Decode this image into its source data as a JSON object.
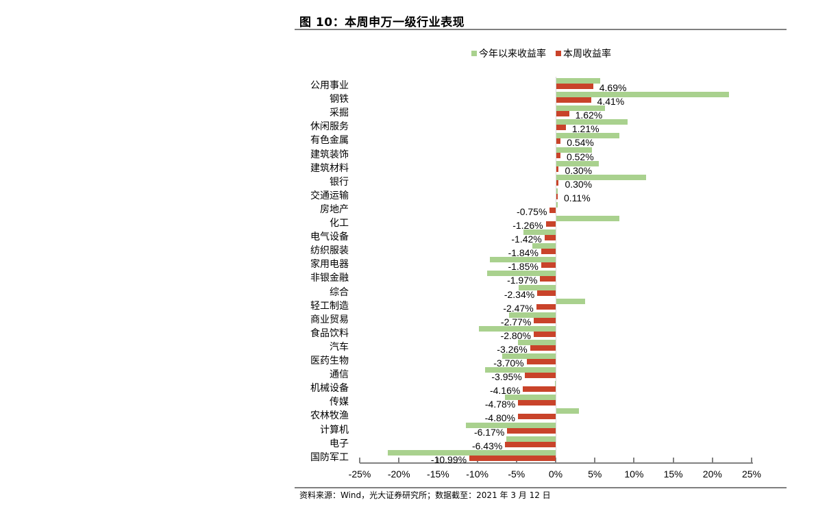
{
  "header": {
    "title": "图 10：本周申万一级行业表现"
  },
  "footer": {
    "source": "资料来源：Wind，光大证券研究所；数据截至：2021 年 3 月 12 日"
  },
  "colors": {
    "ytd": "#a9d18e",
    "week": "#c9432a",
    "axis": "#808080"
  },
  "legend": [
    {
      "label": "今年以来收益率",
      "color": "#a9d18e"
    },
    {
      "label": "本周收益率",
      "color": "#c9432a"
    }
  ],
  "chart_data": {
    "type": "bar",
    "orientation": "horizontal",
    "title": "图 10：本周申万一级行业表现",
    "xlabel": "",
    "ylabel": "",
    "xlim": [
      -25,
      25
    ],
    "x_ticks": [
      "-25%",
      "-20%",
      "-15%",
      "-10%",
      "-5%",
      "0%",
      "5%",
      "10%",
      "15%",
      "20%",
      "25%"
    ],
    "legend_position": "top",
    "grid": false,
    "categories": [
      "公用事业",
      "钢铁",
      "采掘",
      "休闲服务",
      "有色金属",
      "建筑装饰",
      "建筑材料",
      "银行",
      "交通运输",
      "房地产",
      "化工",
      "电气设备",
      "纺织服装",
      "家用电器",
      "非银金融",
      "综合",
      "轻工制造",
      "商业贸易",
      "食品饮料",
      "汽车",
      "医药生物",
      "通信",
      "机械设备",
      "传媒",
      "农林牧渔",
      "计算机",
      "电子",
      "国防军工"
    ],
    "series": [
      {
        "name": "今年以来收益率",
        "color": "#a9d18e",
        "values": [
          5.6,
          22.0,
          6.2,
          9.1,
          8.0,
          4.5,
          5.4,
          11.4,
          0.1,
          0.1,
          8.0,
          -4.1,
          -3.0,
          -8.4,
          -8.7,
          -4.7,
          3.7,
          -5.9,
          -9.8,
          -4.8,
          -6.8,
          -9.0,
          -0.1,
          -6.5,
          2.9,
          -11.4,
          -6.3,
          -21.4
        ]
      },
      {
        "name": "本周收益率",
        "color": "#c9432a",
        "values": [
          4.69,
          4.41,
          1.62,
          1.21,
          0.54,
          0.52,
          0.3,
          0.3,
          0.11,
          -0.75,
          -1.26,
          -1.42,
          -1.84,
          -1.85,
          -1.97,
          -2.34,
          -2.47,
          -2.77,
          -2.8,
          -3.26,
          -3.7,
          -3.95,
          -4.16,
          -4.78,
          -4.8,
          -6.17,
          -6.43,
          -10.99
        ]
      }
    ],
    "data_labels": [
      "4.69%",
      "4.41%",
      "1.62%",
      "1.21%",
      "0.54%",
      "0.52%",
      "0.30%",
      "0.30%",
      "0.11%",
      "-0.75%",
      "-1.26%",
      "-1.42%",
      "-1.84%",
      "-1.85%",
      "-1.97%",
      "-2.34%",
      "-2.47%",
      "-2.77%",
      "-2.80%",
      "-3.26%",
      "-3.70%",
      "-3.95%",
      "-4.16%",
      "-4.78%",
      "-4.80%",
      "-6.17%",
      "-6.43%",
      "-10.99%"
    ]
  }
}
